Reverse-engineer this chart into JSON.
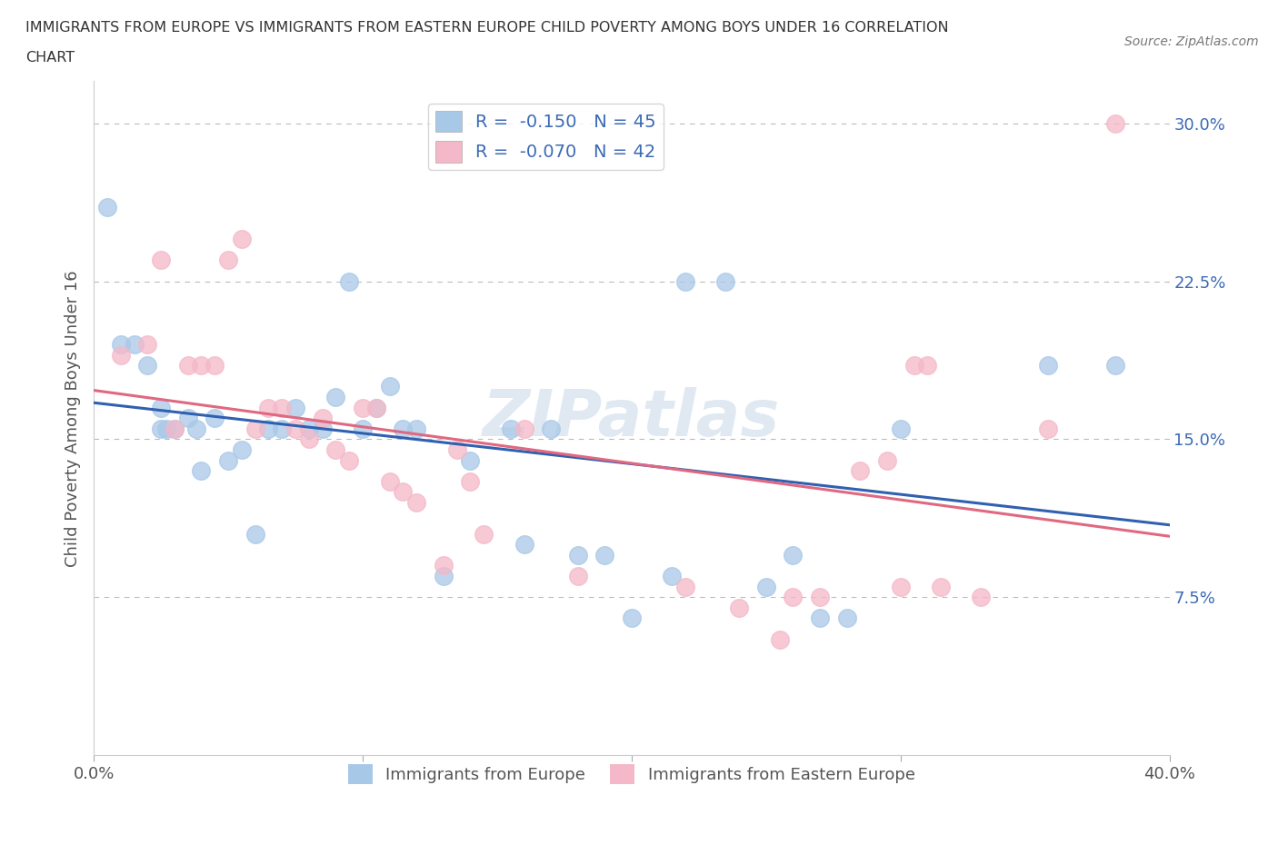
{
  "title_line1": "IMMIGRANTS FROM EUROPE VS IMMIGRANTS FROM EASTERN EUROPE CHILD POVERTY AMONG BOYS UNDER 16 CORRELATION",
  "title_line2": "CHART",
  "source_text": "Source: ZipAtlas.com",
  "ylabel": "Child Poverty Among Boys Under 16",
  "xlim": [
    0.0,
    0.4
  ],
  "ylim": [
    0.0,
    0.32
  ],
  "yticks": [
    0.075,
    0.15,
    0.225,
    0.3
  ],
  "ytick_labels": [
    "7.5%",
    "15.0%",
    "22.5%",
    "30.0%"
  ],
  "blue_scatter_color": "#a8c8e8",
  "pink_scatter_color": "#f4b8c8",
  "trend_blue": "#3060b0",
  "trend_pink": "#e06880",
  "blue_label": "Immigrants from Europe",
  "pink_label": "Immigrants from Eastern Europe",
  "blue_R": -0.15,
  "blue_N": 45,
  "pink_R": -0.07,
  "pink_N": 42,
  "blue_x": [
    0.005,
    0.01,
    0.015,
    0.02,
    0.025,
    0.025,
    0.027,
    0.03,
    0.035,
    0.038,
    0.04,
    0.045,
    0.05,
    0.055,
    0.06,
    0.065,
    0.07,
    0.075,
    0.08,
    0.085,
    0.09,
    0.095,
    0.1,
    0.105,
    0.11,
    0.115,
    0.12,
    0.13,
    0.14,
    0.155,
    0.16,
    0.17,
    0.18,
    0.19,
    0.2,
    0.215,
    0.22,
    0.235,
    0.25,
    0.26,
    0.27,
    0.28,
    0.3,
    0.355,
    0.38
  ],
  "blue_y": [
    0.26,
    0.195,
    0.195,
    0.185,
    0.165,
    0.155,
    0.155,
    0.155,
    0.16,
    0.155,
    0.135,
    0.16,
    0.14,
    0.145,
    0.105,
    0.155,
    0.155,
    0.165,
    0.155,
    0.155,
    0.17,
    0.225,
    0.155,
    0.165,
    0.175,
    0.155,
    0.155,
    0.085,
    0.14,
    0.155,
    0.1,
    0.155,
    0.095,
    0.095,
    0.065,
    0.085,
    0.225,
    0.225,
    0.08,
    0.095,
    0.065,
    0.065,
    0.155,
    0.185,
    0.185
  ],
  "pink_x": [
    0.01,
    0.02,
    0.025,
    0.03,
    0.035,
    0.04,
    0.045,
    0.05,
    0.055,
    0.06,
    0.065,
    0.07,
    0.075,
    0.08,
    0.085,
    0.09,
    0.095,
    0.1,
    0.105,
    0.11,
    0.115,
    0.12,
    0.13,
    0.135,
    0.14,
    0.145,
    0.16,
    0.18,
    0.22,
    0.24,
    0.255,
    0.26,
    0.27,
    0.285,
    0.295,
    0.3,
    0.305,
    0.31,
    0.315,
    0.33,
    0.355,
    0.38
  ],
  "pink_y": [
    0.19,
    0.195,
    0.235,
    0.155,
    0.185,
    0.185,
    0.185,
    0.235,
    0.245,
    0.155,
    0.165,
    0.165,
    0.155,
    0.15,
    0.16,
    0.145,
    0.14,
    0.165,
    0.165,
    0.13,
    0.125,
    0.12,
    0.09,
    0.145,
    0.13,
    0.105,
    0.155,
    0.085,
    0.08,
    0.07,
    0.055,
    0.075,
    0.075,
    0.135,
    0.14,
    0.08,
    0.185,
    0.185,
    0.08,
    0.075,
    0.155,
    0.3
  ]
}
